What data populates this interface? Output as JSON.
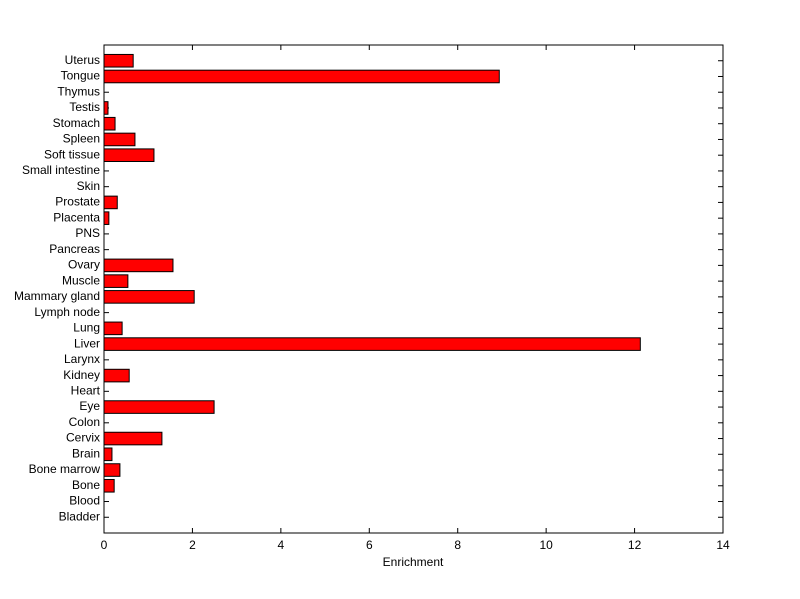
{
  "chart_data": {
    "type": "barh",
    "xlabel": "Enrichment",
    "categories": [
      "Bladder",
      "Blood",
      "Bone",
      "Bone marrow",
      "Brain",
      "Cervix",
      "Colon",
      "Eye",
      "Heart",
      "Kidney",
      "Larynx",
      "Liver",
      "Lung",
      "Lymph node",
      "Mammary gland",
      "Muscle",
      "Ovary",
      "Pancreas",
      "PNS",
      "Placenta",
      "Prostate",
      "Skin",
      "Small intestine",
      "Soft tissue",
      "Spleen",
      "Stomach",
      "Testis",
      "Thymus",
      "Tongue",
      "Uterus"
    ],
    "values": [
      0,
      0,
      0.23,
      0.36,
      0.18,
      1.31,
      0,
      2.49,
      0,
      0.57,
      0,
      12.13,
      0.41,
      0,
      2.04,
      0.54,
      1.56,
      0,
      0,
      0.11,
      0.3,
      0,
      0,
      1.13,
      0.7,
      0.25,
      0.09,
      0,
      8.94,
      0.66
    ],
    "color": "#ff0000",
    "xlim": [
      0,
      14
    ],
    "xticks": [
      0,
      2,
      4,
      6,
      8,
      10,
      12,
      14
    ]
  }
}
